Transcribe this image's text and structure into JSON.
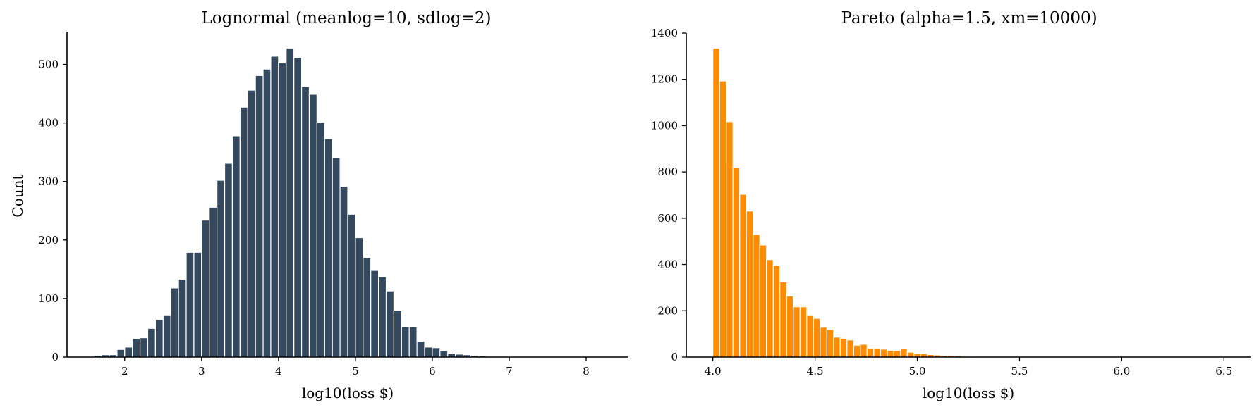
{
  "chart_data": [
    {
      "type": "bar",
      "title": "Lognormal (meanlog=10, sdlog=2)",
      "xlabel": "log10(loss $)",
      "ylabel": "Count",
      "color": "#34495e",
      "xlim": [
        1.25,
        8.55
      ],
      "ylim": [
        0,
        556
      ],
      "xticks": [
        2,
        3,
        4,
        5,
        6,
        7,
        8
      ],
      "xtick_labels": [
        "2",
        "3",
        "4",
        "5",
        "6",
        "7",
        "8"
      ],
      "yticks": [
        0,
        100,
        200,
        300,
        400,
        500
      ],
      "ytick_labels": [
        "0",
        "100",
        "200",
        "300",
        "400",
        "500"
      ],
      "grid": false,
      "bin_start": 1.6,
      "bin_width": 0.1,
      "values": [
        3,
        4,
        4,
        13,
        17,
        32,
        33,
        49,
        64,
        72,
        118,
        133,
        179,
        179,
        234,
        256,
        302,
        331,
        378,
        427,
        456,
        481,
        492,
        514,
        503,
        528,
        512,
        462,
        449,
        401,
        373,
        341,
        292,
        244,
        204,
        170,
        148,
        137,
        113,
        80,
        52,
        52,
        27,
        17,
        16,
        11,
        6,
        5,
        4,
        3,
        2,
        1,
        1,
        1,
        1,
        1,
        0,
        0,
        0,
        0,
        0,
        0,
        0,
        0,
        0,
        0
      ]
    },
    {
      "type": "bar",
      "title": "Pareto (alpha=1.5, xm=10000)",
      "xlabel": "log10(loss $)",
      "ylabel": "",
      "color": "#ff8c00",
      "xlim": [
        3.87,
        6.63
      ],
      "ylim": [
        0,
        1400
      ],
      "xticks": [
        4.0,
        4.5,
        5.0,
        5.5,
        6.0,
        6.5
      ],
      "xtick_labels": [
        "4.0",
        "4.5",
        "5.0",
        "5.5",
        "6.0",
        "6.5"
      ],
      "yticks": [
        0,
        200,
        400,
        600,
        800,
        1000,
        1200,
        1400
      ],
      "ytick_labels": [
        "0",
        "200",
        "400",
        "600",
        "800",
        "1000",
        "1200",
        "1400"
      ],
      "grid": false,
      "bin_start": 4.0,
      "bin_width": 0.0328,
      "values": [
        1335,
        1193,
        1017,
        820,
        703,
        631,
        530,
        484,
        421,
        396,
        325,
        264,
        217,
        217,
        182,
        167,
        129,
        119,
        86,
        81,
        74,
        51,
        55,
        37,
        37,
        34,
        29,
        28,
        35,
        21,
        15,
        15,
        11,
        9,
        7,
        7,
        6,
        4,
        3,
        3,
        2,
        3,
        2,
        2,
        1,
        1,
        1,
        1,
        1,
        0,
        0,
        0,
        0,
        0,
        0,
        0,
        0,
        0,
        0,
        0,
        0,
        0,
        0,
        0,
        0,
        0,
        0,
        0,
        0,
        0,
        0,
        0,
        0,
        0,
        0,
        0,
        0,
        0,
        0
      ]
    }
  ]
}
